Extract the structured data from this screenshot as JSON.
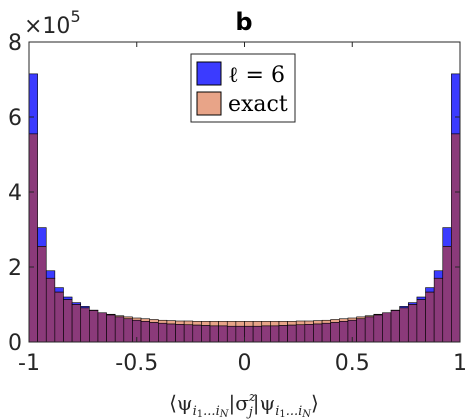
{
  "chart_data": {
    "type": "bar",
    "panel_label": "b",
    "exponent_label": "×10",
    "exponent_power": "5",
    "xlabel_parts": {
      "left_bracket": "⟨ψ",
      "sub1": "i",
      "sub1a": "1",
      "sub1b": "...i",
      "sub1c": "N",
      "mid": "|σ",
      "sup": "z",
      "sub2": "j",
      "mid2": "|ψ",
      "right_bracket": "⟩"
    },
    "xlim": [
      -1,
      1
    ],
    "ylim": [
      0,
      800000
    ],
    "xticks": [
      "-1",
      "-0.5",
      "0",
      "0.5",
      "1"
    ],
    "xtick_values": [
      -1,
      -0.5,
      0,
      0.5,
      1
    ],
    "yticks": [
      "0",
      "2",
      "4",
      "6",
      "8"
    ],
    "ytick_values": [
      0,
      200000,
      400000,
      600000,
      800000
    ],
    "bin_edges_start": -1,
    "bin_width": 0.04,
    "legend_position": "top-center",
    "series": [
      {
        "name": "ℓ = 6",
        "color": "#3b3bff",
        "values": [
          715000,
          305000,
          190000,
          145000,
          120000,
          105000,
          95000,
          85000,
          78000,
          72000,
          67000,
          62000,
          58000,
          55000,
          52000,
          50000,
          48000,
          47000,
          46000,
          45000,
          44000,
          43000,
          43000,
          42000,
          42000,
          42000,
          42000,
          43000,
          43000,
          44000,
          45000,
          46000,
          47000,
          48000,
          50000,
          52000,
          55000,
          58000,
          62000,
          67000,
          72000,
          78000,
          85000,
          95000,
          105000,
          120000,
          145000,
          190000,
          305000,
          715000
        ]
      },
      {
        "name": "exact",
        "color": "#e8a488",
        "values": [
          555000,
          255000,
          170000,
          133000,
          113000,
          100000,
          91000,
          84000,
          78000,
          74000,
          70000,
          67000,
          64000,
          62000,
          60000,
          58000,
          57000,
          56000,
          56000,
          55000,
          55000,
          55000,
          55000,
          55000,
          55000,
          55000,
          55000,
          55000,
          55000,
          55000,
          55000,
          56000,
          56000,
          57000,
          58000,
          60000,
          62000,
          64000,
          67000,
          70000,
          74000,
          78000,
          84000,
          91000,
          100000,
          113000,
          133000,
          170000,
          255000,
          555000
        ]
      }
    ],
    "overlap_color": "#8b3a7a",
    "edge_color": "#000000"
  }
}
